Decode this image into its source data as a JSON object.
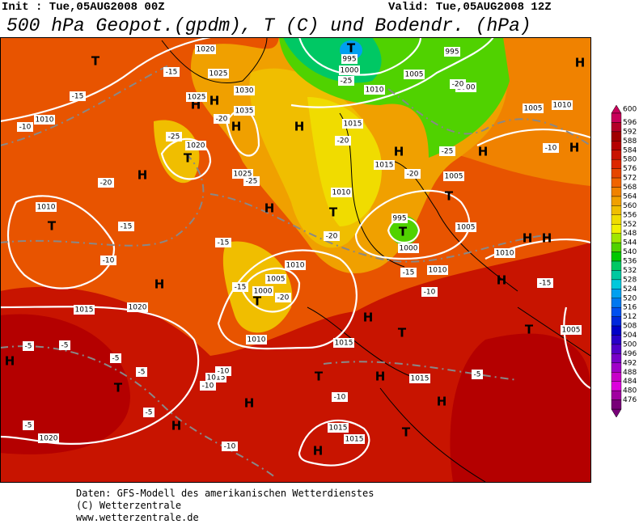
{
  "header": {
    "init": "Init : Tue,05AUG2008 00Z",
    "valid": "Valid: Tue,05AUG2008 12Z",
    "title": "500 hPa Geopot.(gpdm), T (C) und Bodendr. (hPa)"
  },
  "colorbar": {
    "levels": [
      600,
      596,
      592,
      588,
      584,
      580,
      576,
      572,
      568,
      564,
      560,
      556,
      552,
      548,
      544,
      540,
      536,
      532,
      528,
      524,
      520,
      516,
      512,
      508,
      504,
      500,
      496,
      492,
      488,
      484,
      480,
      476
    ],
    "colors": [
      "#c8005a",
      "#b40028",
      "#a00000",
      "#b40000",
      "#c81400",
      "#dc2800",
      "#e64600",
      "#f06400",
      "#f08200",
      "#f0a000",
      "#f0be00",
      "#f0dc00",
      "#f0f000",
      "#a0e600",
      "#50d200",
      "#00c800",
      "#00c864",
      "#00c8a0",
      "#00c8dc",
      "#00a0f0",
      "#0078f0",
      "#0050f0",
      "#0028dc",
      "#0000c8",
      "#2800c8",
      "#5000c8",
      "#7800c8",
      "#a000c8",
      "#c800c8",
      "#dc00dc",
      "#a000a0",
      "#780078"
    ]
  },
  "map_labels": [
    "T",
    "H",
    "H",
    "H",
    "H",
    "H",
    "T",
    "H",
    "T",
    "H",
    "T",
    "H",
    "H",
    "H",
    "T",
    "H",
    "T",
    "H",
    "T",
    "H",
    "T",
    "H",
    "H",
    "T",
    "H",
    "H",
    "T",
    "H",
    "H",
    "T",
    "H",
    "H",
    "T",
    "T",
    "1020",
    "1025",
    "1030",
    "1035",
    "1025",
    "1020",
    "1025",
    "1010",
    "1010",
    "1010",
    "1005",
    "1000",
    "1010",
    "1015",
    "1020",
    "1015",
    "1015",
    "1020",
    "1015",
    "1015",
    "1015",
    "1010",
    "1005",
    "1015",
    "1010",
    "1015",
    "1005",
    "1005",
    "995",
    "1000",
    "1010",
    "1005",
    "1000",
    "995",
    "1005",
    "1010",
    "995",
    "1000",
    "1010",
    "-15",
    "-15",
    "-10",
    "-20",
    "-25",
    "-25",
    "-20",
    "-15",
    "-15",
    "-10",
    "-15",
    "-20",
    "-20",
    "-20",
    "-15",
    "-10",
    "-5",
    "-5",
    "-5",
    "-5",
    "-10",
    "-10",
    "-10",
    "-10",
    "-5",
    "-5",
    "-5",
    "-25",
    "-20",
    "-20",
    "-25",
    "-10",
    "-15"
  ],
  "footer": [
    "Daten: GFS-Modell des amerikanischen Wetterdienstes",
    "(C) Wetterzentrale",
    "www.wetterzentrale.de"
  ]
}
